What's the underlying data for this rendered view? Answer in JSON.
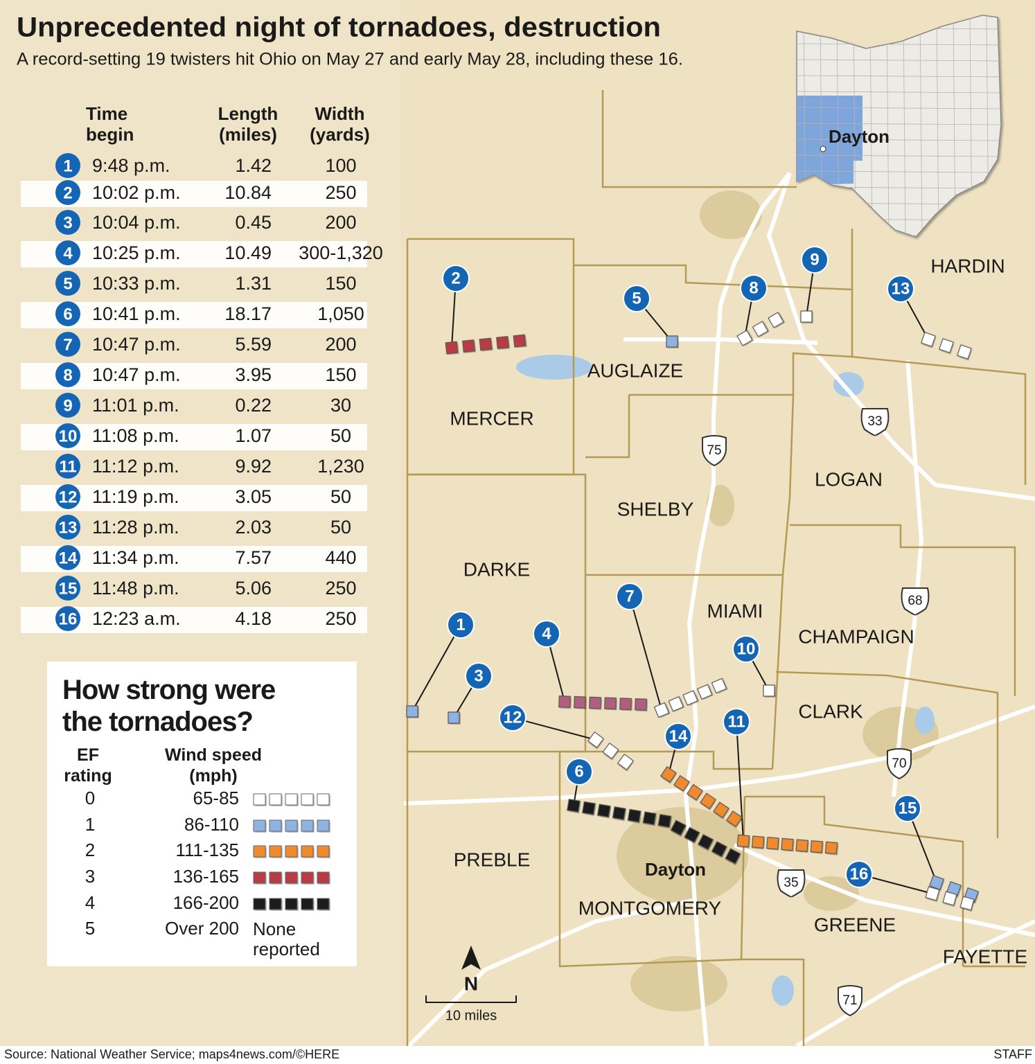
{
  "header": {
    "title": "Unprecedented night of tornadoes, destruction",
    "subtitle": "A record-setting 19 twisters hit Ohio on May 27 and early May 28, including these 16."
  },
  "table": {
    "headers": [
      "Time begin",
      "Length (miles)",
      "Width (yards)"
    ],
    "badge_color": "#1565b5",
    "rows": [
      [
        "1",
        "9:48 p.m.",
        "1.42",
        "100"
      ],
      [
        "2",
        "10:02 p.m.",
        "10.84",
        "250"
      ],
      [
        "3",
        "10:04 p.m.",
        "0.45",
        "200"
      ],
      [
        "4",
        "10:25 p.m.",
        "10.49",
        "300-1,320"
      ],
      [
        "5",
        "10:33 p.m.",
        "1.31",
        "150"
      ],
      [
        "6",
        "10:41 p.m.",
        "18.17",
        "1,050"
      ],
      [
        "7",
        "10:47 p.m.",
        "5.59",
        "200"
      ],
      [
        "8",
        "10:47 p.m.",
        "3.95",
        "150"
      ],
      [
        "9",
        "11:01 p.m.",
        "0.22",
        "30"
      ],
      [
        "10",
        "11:08 p.m.",
        "1.07",
        "50"
      ],
      [
        "11",
        "11:12 p.m.",
        "9.92",
        "1,230"
      ],
      [
        "12",
        "11:19 p.m.",
        "3.05",
        "50"
      ],
      [
        "13",
        "11:28 p.m.",
        "2.03",
        "50"
      ],
      [
        "14",
        "11:34 p.m.",
        "7.57",
        "440"
      ],
      [
        "15",
        "11:48 p.m.",
        "5.06",
        "250"
      ],
      [
        "16",
        "12:23 a.m.",
        "4.18",
        "250"
      ]
    ]
  },
  "legend": {
    "title": "How strong were the tornadoes?",
    "headers": [
      "EF rating",
      "Wind speed (mph)"
    ],
    "rows": [
      {
        "rating": "0",
        "wind": "65-85",
        "color": "#ffffff"
      },
      {
        "rating": "1",
        "wind": "86-110",
        "color": "#8fb3e0"
      },
      {
        "rating": "2",
        "wind": "111-135",
        "color": "#f08a2e"
      },
      {
        "rating": "3",
        "wind": "136-165",
        "color": "#b83a45"
      },
      {
        "rating": "4",
        "wind": "166-200",
        "color": "#1a1a1a"
      },
      {
        "rating": "5",
        "wind": "Over 200",
        "note": "None reported"
      }
    ]
  },
  "map": {
    "inset_label": "Dayton",
    "inset_color": "#7fa6dc",
    "counties": [
      "HARDIN",
      "AUGLAIZE",
      "MERCER",
      "SHELBY",
      "LOGAN",
      "DARKE",
      "MIAMI",
      "CHAMPAIGN",
      "CLARK",
      "PREBLE",
      "MONTGOMERY",
      "GREENE",
      "FAYETTE"
    ],
    "city": "Dayton",
    "highways": [
      {
        "label": "33",
        "kind": "us"
      },
      {
        "label": "75",
        "kind": "interstate"
      },
      {
        "label": "68",
        "kind": "us"
      },
      {
        "label": "70",
        "kind": "interstate"
      },
      {
        "label": "35",
        "kind": "us"
      },
      {
        "label": "71",
        "kind": "interstate"
      }
    ],
    "tornadoes": [
      {
        "label": "1",
        "color": "#8fb3e0"
      },
      {
        "label": "2",
        "color": "#b83a45"
      },
      {
        "label": "3",
        "color": "#8fb3e0"
      },
      {
        "label": "4",
        "color": "#b0607e"
      },
      {
        "label": "5",
        "color": "#8fb3e0"
      },
      {
        "label": "6",
        "color": "#1a1a1a"
      },
      {
        "label": "7",
        "color": "#ffffff"
      },
      {
        "label": "8",
        "color": "#ffffff"
      },
      {
        "label": "9",
        "color": "#ffffff"
      },
      {
        "label": "10",
        "color": "#ffffff"
      },
      {
        "label": "11",
        "color": "#f08a2e"
      },
      {
        "label": "12",
        "color": "#ffffff"
      },
      {
        "label": "13",
        "color": "#ffffff"
      },
      {
        "label": "14",
        "color": "#f08a2e"
      },
      {
        "label": "15",
        "color": "#8fb3e0"
      },
      {
        "label": "16",
        "color": "#ffffff"
      }
    ],
    "north": "N",
    "scale": "10 miles"
  },
  "footer": {
    "source": "Source: National Weather Service;  maps4news.com/©HERE",
    "credit": "STAFF"
  }
}
